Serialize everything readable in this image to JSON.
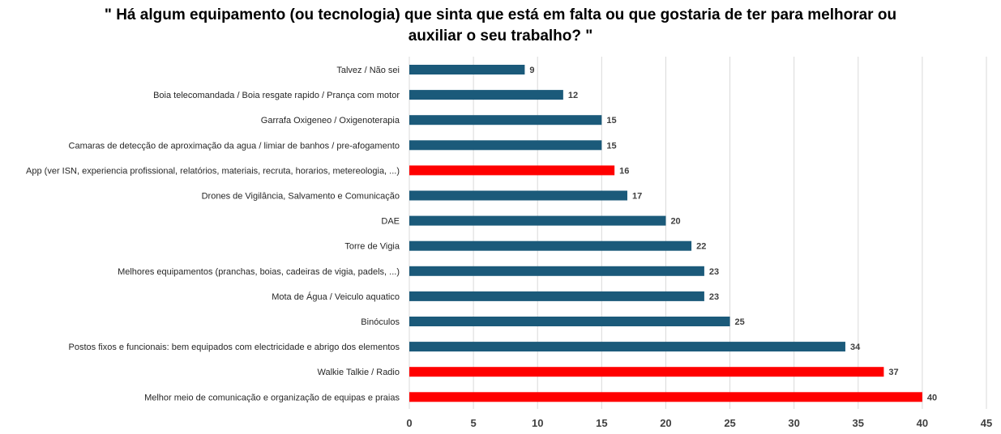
{
  "chart_data": {
    "type": "bar",
    "orientation": "horizontal",
    "title_lines": [
      "\" Há algum equipamento (ou tecnologia) que sinta que está em falta ou que gostaria de ter para melhorar ou",
      "auxiliar o seu trabalho? \""
    ],
    "categories": [
      "Talvez / Não sei",
      "Boia telecomandada / Boia resgate rapido / Prança com motor",
      "Garrafa Oxigeneo / Oxigenoterapia",
      "Camaras de detecção de aproximação da agua / limiar de banhos / pre-afogamento",
      "App (ver ISN, experiencia profissional, relatórios, materiais, recruta, horarios, metereologia, ...)",
      "Drones de Vigilância, Salvamento e Comunicação",
      "DAE",
      "Torre de Vigia",
      "Melhores equipamentos (pranchas, boias, cadeiras de vigia, padels, ...)",
      "Mota de Água / Veiculo aquatico",
      "Binóculos",
      "Postos fixos e funcionais: bem equipados com electricidade e abrigo dos elementos",
      "Walkie Talkie / Radio",
      "Melhor meio de comunicação e organização de equipas e praias"
    ],
    "values": [
      9,
      12,
      15,
      15,
      16,
      17,
      20,
      22,
      23,
      23,
      25,
      34,
      37,
      40
    ],
    "highlighted": [
      false,
      false,
      false,
      false,
      true,
      false,
      false,
      false,
      false,
      false,
      false,
      false,
      true,
      true
    ],
    "colors": {
      "default": "#1b5a7a",
      "highlight": "#ff0000"
    },
    "xlim": [
      0,
      45
    ],
    "xticks": [
      0,
      5,
      10,
      15,
      20,
      25,
      30,
      35,
      40,
      45
    ],
    "grid": "vertical",
    "data_labels": true
  }
}
